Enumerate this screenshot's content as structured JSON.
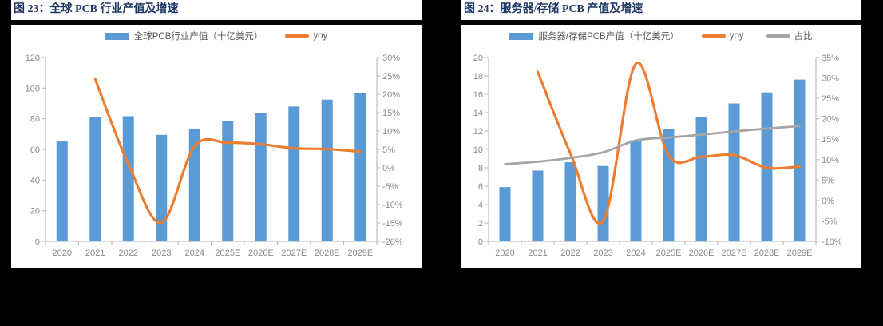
{
  "colors": {
    "bar": "#5B9BD5",
    "yoy_line": "#ED7D31",
    "share_line": "#A5A5A5",
    "title_text": "#1F3864",
    "axis_line": "#BFBFBF",
    "tick_label": "#8A8A8A",
    "legend_text": "#595959",
    "panel_bg": "#FFFFFF",
    "page_bg": "#000000"
  },
  "figures": [
    {
      "title": "图  23：全球 PCB 行业产值及增速",
      "legend": [
        {
          "type": "bar",
          "label": "全球PCB行业产值（十亿美元）",
          "color": "#5B9BD5"
        },
        {
          "type": "line",
          "label": "yoy",
          "color": "#ED7D31"
        }
      ],
      "chart_data": {
        "type": "bar+line",
        "categories": [
          "2020",
          "2021",
          "2022",
          "2023",
          "2024",
          "2025E",
          "2026E",
          "2027E",
          "2028E",
          "2029E"
        ],
        "series": [
          {
            "name": "全球PCB行业产值（十亿美元）",
            "type": "bar",
            "axis": "left",
            "color": "#5B9BD5",
            "values": [
              65.2,
              80.9,
              81.7,
              69.5,
              73.6,
              78.6,
              83.6,
              88.0,
              92.5,
              96.6
            ]
          },
          {
            "name": "yoy",
            "type": "line",
            "axis": "right",
            "color": "#ED7D31",
            "values": [
              null,
              24.1,
              1.0,
              -14.9,
              5.9,
              6.8,
              6.4,
              5.3,
              5.1,
              4.4
            ]
          }
        ],
        "left_axis": {
          "min": 0,
          "max": 120,
          "step": 20,
          "unit": ""
        },
        "right_axis": {
          "min": -20,
          "max": 30,
          "step": 5,
          "unit": "%"
        },
        "grid": false,
        "legend_position": "top"
      }
    },
    {
      "title": "图  24：服务器/存储 PCB 产值及增速",
      "legend": [
        {
          "type": "bar",
          "label": "服务器/存储PCB产值（十亿美元）",
          "color": "#5B9BD5"
        },
        {
          "type": "line",
          "label": "yoy",
          "color": "#ED7D31"
        },
        {
          "type": "line",
          "label": "占比",
          "color": "#A5A5A5"
        }
      ],
      "chart_data": {
        "type": "bar+line",
        "categories": [
          "2020",
          "2021",
          "2022",
          "2023",
          "2024",
          "2025E",
          "2026E",
          "2027E",
          "2028E",
          "2029E"
        ],
        "series": [
          {
            "name": "服务器/存储PCB产值（十亿美元）",
            "type": "bar",
            "axis": "left",
            "color": "#5B9BD5",
            "values": [
              5.9,
              7.7,
              8.6,
              8.2,
              11.0,
              12.2,
              13.5,
              15.0,
              16.2,
              17.6
            ]
          },
          {
            "name": "yoy",
            "type": "line",
            "axis": "right",
            "color": "#ED7D31",
            "values": [
              null,
              31.5,
              11.5,
              -5.0,
              33.5,
              11.0,
              10.7,
              11.1,
              8.0,
              8.3
            ]
          },
          {
            "name": "占比",
            "type": "line",
            "axis": "right",
            "color": "#A5A5A5",
            "values": [
              8.9,
              9.5,
              10.4,
              11.8,
              14.7,
              15.4,
              16.1,
              16.9,
              17.6,
              18.2
            ]
          }
        ],
        "left_axis": {
          "min": 0,
          "max": 20,
          "step": 2,
          "unit": ""
        },
        "right_axis": {
          "min": -10,
          "max": 35,
          "step": 5,
          "unit": "%"
        },
        "grid": false,
        "legend_position": "top"
      }
    }
  ]
}
